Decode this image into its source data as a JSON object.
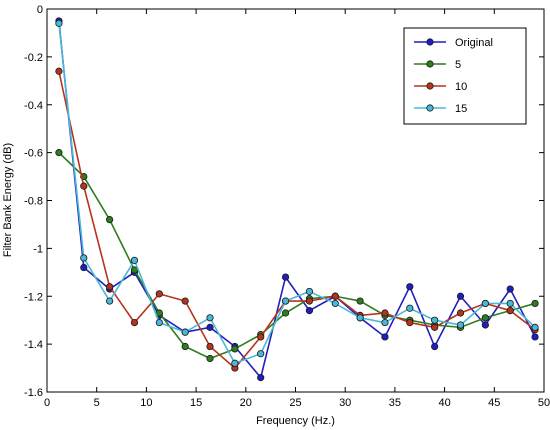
{
  "chart_data": {
    "type": "line",
    "title": "",
    "xlabel": "Frequency (Hz.)",
    "ylabel": "Filter Bank Energy (dB)",
    "xlim": [
      0,
      50
    ],
    "ylim": [
      -1.6,
      0
    ],
    "xticks": [
      0,
      5,
      10,
      15,
      20,
      25,
      30,
      35,
      40,
      45,
      50
    ],
    "yticks": [
      0,
      -0.2,
      -0.4,
      -0.6,
      -0.8,
      -1,
      -1.2,
      -1.4,
      -1.6
    ],
    "grid": false,
    "legend_position": "top-right",
    "x": [
      1.2,
      3.7,
      6.3,
      8.8,
      11.3,
      13.9,
      16.4,
      18.9,
      21.5,
      24.0,
      26.4,
      29.0,
      31.5,
      34.0,
      36.5,
      39.0,
      41.6,
      44.1,
      46.6,
      49.1
    ],
    "series": [
      {
        "name": "Original",
        "color": "#1f1fbf",
        "values": [
          -0.05,
          -1.08,
          -1.17,
          -1.1,
          -1.28,
          -1.35,
          -1.33,
          -1.41,
          -1.54,
          -1.12,
          -1.26,
          -1.2,
          -1.29,
          -1.37,
          -1.16,
          -1.41,
          -1.2,
          -1.32,
          -1.17,
          -1.37
        ]
      },
      {
        "name": "5",
        "color": "#2e7d1e",
        "values": [
          -0.6,
          -0.7,
          -0.88,
          -1.09,
          -1.27,
          -1.41,
          -1.46,
          -1.42,
          -1.36,
          -1.27,
          -1.21,
          -1.2,
          -1.22,
          -1.28,
          -1.3,
          -1.32,
          -1.33,
          -1.29,
          -1.26,
          -1.23
        ]
      },
      {
        "name": "10",
        "color": "#b8331e",
        "values": [
          -0.26,
          -0.74,
          -1.16,
          -1.31,
          -1.19,
          -1.22,
          -1.41,
          -1.5,
          -1.37,
          -1.22,
          -1.22,
          -1.2,
          -1.28,
          -1.27,
          -1.31,
          -1.33,
          -1.27,
          -1.23,
          -1.26,
          -1.34
        ]
      },
      {
        "name": "15",
        "color": "#49b8d8",
        "values": [
          -0.06,
          -1.04,
          -1.22,
          -1.05,
          -1.31,
          -1.35,
          -1.29,
          -1.48,
          -1.44,
          -1.22,
          -1.18,
          -1.23,
          -1.29,
          -1.31,
          -1.25,
          -1.3,
          -1.32,
          -1.23,
          -1.23,
          -1.33
        ]
      }
    ]
  }
}
